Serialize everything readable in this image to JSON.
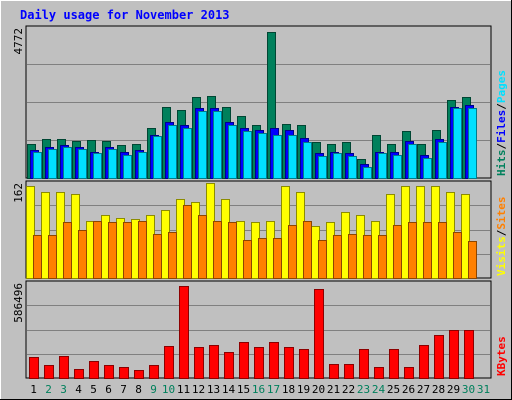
{
  "chart_data": {
    "type": "bar",
    "title": "Daily usage for November 2013",
    "categories": [
      "1",
      "2",
      "3",
      "4",
      "5",
      "6",
      "7",
      "8",
      "9",
      "10",
      "11",
      "12",
      "13",
      "14",
      "15",
      "16",
      "17",
      "18",
      "19",
      "20",
      "21",
      "22",
      "23",
      "24",
      "25",
      "26",
      "27",
      "28",
      "29",
      "30",
      "31"
    ],
    "weekend_categories": [
      "2",
      "3",
      "9",
      "10",
      "16",
      "17",
      "23",
      "24",
      "30",
      "31"
    ],
    "panels": [
      {
        "name": "hits-files-pages",
        "ymax_label": "4772",
        "ylim": [
          0,
          4772
        ],
        "axis_legend": [
          {
            "text": "Hits",
            "color": "#00805C"
          },
          {
            "text": "/",
            "color": "#000000"
          },
          {
            "text": "Files",
            "color": "#0000FF"
          },
          {
            "text": "/",
            "color": "#000000"
          },
          {
            "text": "Pages",
            "color": "#00E0FF"
          }
        ],
        "series": [
          {
            "name": "Hits",
            "color": "#00805C",
            "values": [
              1090,
              1250,
              1250,
              1200,
              1210,
              1200,
              1060,
              1100,
              1600,
              2300,
              2200,
              2600,
              2650,
              2300,
              2000,
              1700,
              4700,
              1750,
              1700,
              1150,
              1100,
              1150,
              600,
              1400,
              1100,
              1500,
              1100,
              1550,
              2500,
              2600,
              0
            ]
          },
          {
            "name": "Files",
            "color": "#0000FF",
            "values": [
              900,
              1000,
              1050,
              1000,
              850,
              1000,
              850,
              900,
              1400,
              1800,
              1700,
              2250,
              2250,
              1800,
              1600,
              1550,
              1600,
              1550,
              1300,
              800,
              850,
              800,
              450,
              850,
              850,
              1200,
              750,
              1250,
              2300,
              2350,
              0
            ]
          },
          {
            "name": "Pages",
            "color": "#00E0FF",
            "values": [
              850,
              950,
              1000,
              950,
              800,
              950,
              750,
              850,
              1350,
              1700,
              1600,
              2150,
              2150,
              1700,
              1500,
              1450,
              1400,
              1400,
              1150,
              700,
              800,
              700,
              350,
              800,
              750,
              1100,
              650,
              1150,
              2250,
              2250,
              0
            ]
          }
        ]
      },
      {
        "name": "visits-sites",
        "ymax_label": "162",
        "ylim": [
          0,
          162
        ],
        "axis_legend": [
          {
            "text": "Visits",
            "color": "#FFFF00"
          },
          {
            "text": "/",
            "color": "#000000"
          },
          {
            "text": "Sites",
            "color": "#FF8000"
          }
        ],
        "series": [
          {
            "name": "Visits",
            "color": "#FFFF00",
            "values": [
              160,
              150,
              150,
              147,
              100,
              110,
              105,
              103,
              110,
              118,
              137,
              133,
              165,
              137,
              100,
              97,
              100,
              160,
              150,
              90,
              97,
              115,
              110,
              100,
              147,
              160,
              160,
              160,
              150,
              147,
              0
            ]
          },
          {
            "name": "Sites",
            "color": "#FF8000",
            "values": [
              75,
              75,
              97,
              83,
              100,
              97,
              97,
              100,
              77,
              80,
              127,
              110,
              100,
              97,
              67,
              70,
              70,
              93,
              100,
              67,
              75,
              77,
              75,
              75,
              93,
              97,
              97,
              97,
              80,
              65,
              0
            ]
          }
        ]
      },
      {
        "name": "kbytes",
        "ymax_label": "586496",
        "ylim": [
          0,
          586496
        ],
        "axis_legend": [
          {
            "text": "KBytes",
            "color": "#FF0000"
          }
        ],
        "series": [
          {
            "name": "KBytes",
            "color": "#FF0000",
            "values": [
              135000,
              85000,
              140000,
              55000,
              110000,
              80000,
              68000,
              50000,
              80000,
              200000,
              580000,
              195000,
              210000,
              165000,
              225000,
              195000,
              230000,
              195000,
              185000,
              560000,
              90000,
              90000,
              185000,
              68000,
              185000,
              70000,
              210000,
              270000,
              300000,
              300000,
              0
            ]
          }
        ]
      }
    ],
    "grid": true
  }
}
